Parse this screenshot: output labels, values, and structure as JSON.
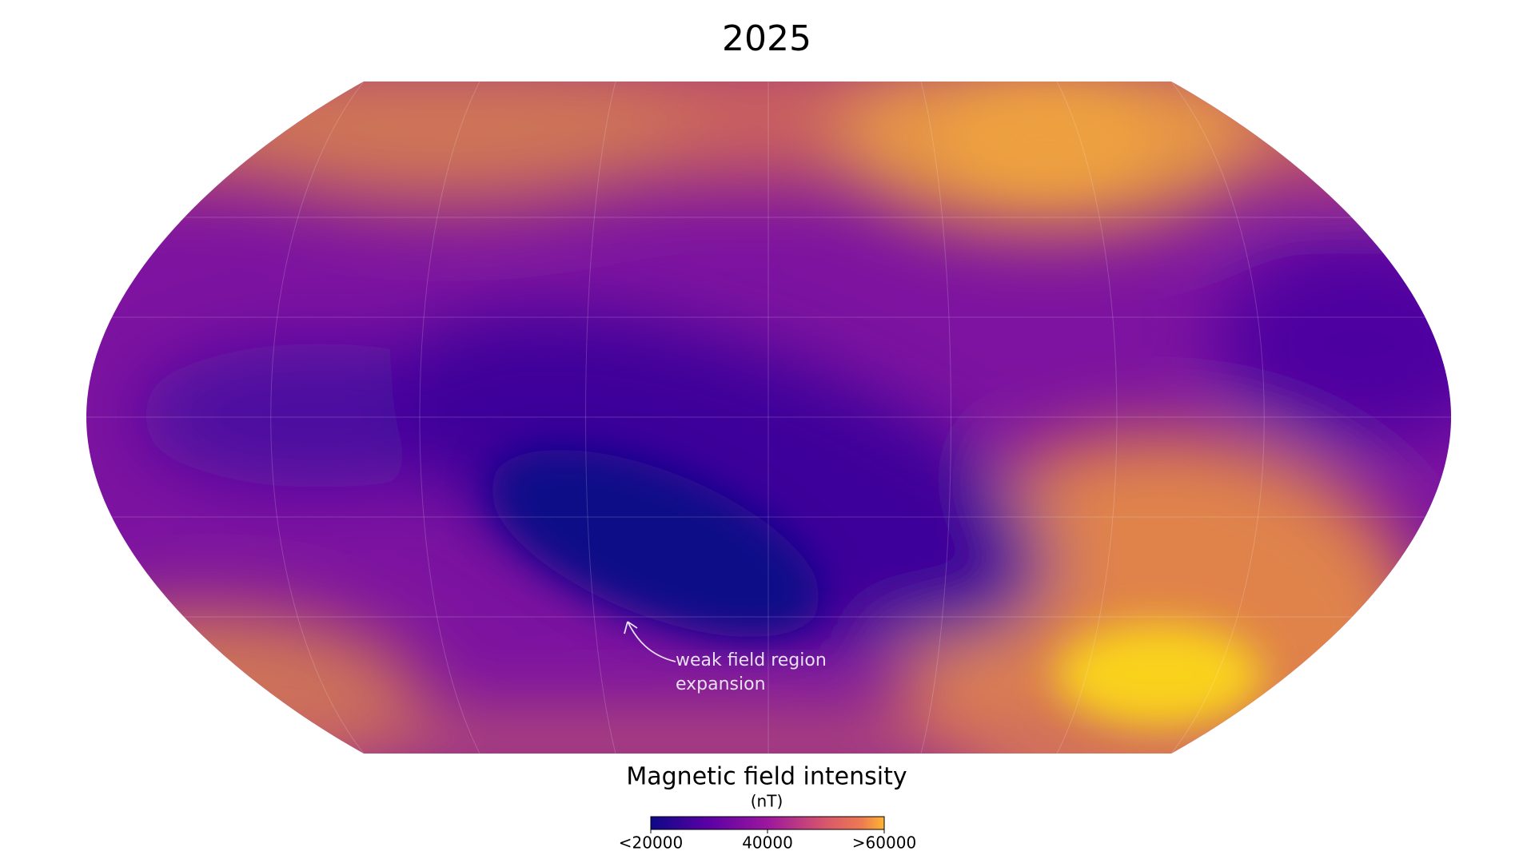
{
  "title": "2025",
  "annotation": [
    "weak field region",
    "expansion"
  ],
  "colorbar": {
    "title": "Magnetic field intensity",
    "unit": "(nT)",
    "lim": [
      20000,
      60000
    ],
    "ticks": [
      {
        "value": 20000,
        "label": "<20000"
      },
      40000,
      {
        "value": 60000,
        "label": ">60000"
      }
    ]
  }
}
